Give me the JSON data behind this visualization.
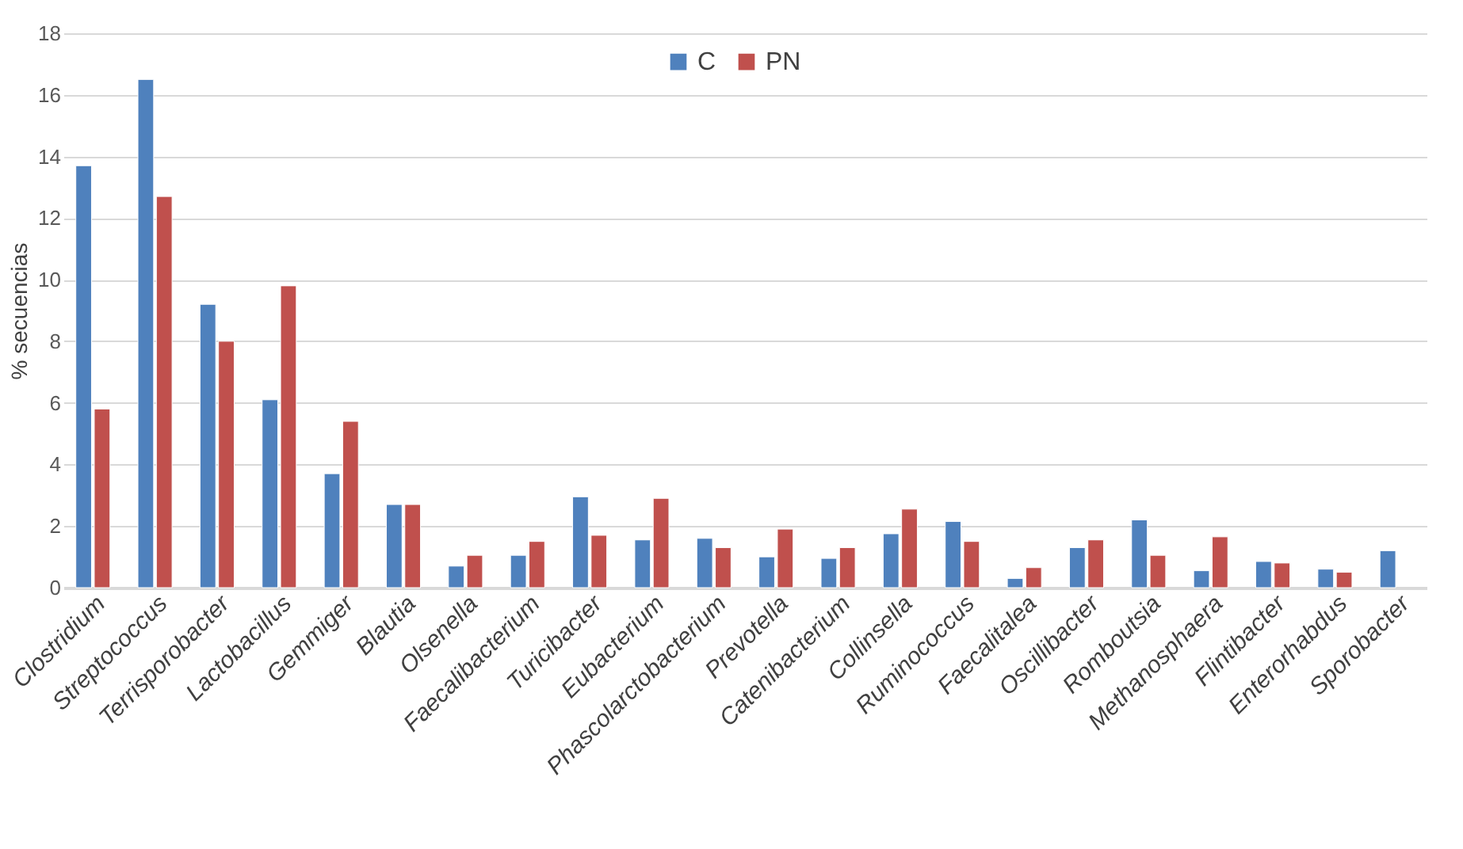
{
  "chart_data": {
    "type": "bar",
    "ylabel": "% secuencias",
    "categories": [
      "Clostridium",
      "Streptococcus",
      "Terrisporobacter",
      "Lactobacillus",
      "Gemmiger",
      "Blautia",
      "Olsenella",
      "Faecalibacterium",
      "Turicibacter",
      "Eubacterium",
      "Phascolarctobacterium",
      "Prevotella",
      "Catenibacterium",
      "Collinsella",
      "Ruminococcus",
      "Faecalitalea",
      "Oscillibacter",
      "Romboutsia",
      "Methanosphaera",
      "Flintibacter",
      "Enterorhabdus",
      "Sporobacter"
    ],
    "series": [
      {
        "name": "C",
        "color": "#4f81bd",
        "values": [
          13.7,
          16.5,
          9.2,
          6.1,
          3.7,
          2.7,
          0.7,
          1.05,
          2.95,
          1.55,
          1.6,
          1.0,
          0.95,
          1.75,
          2.15,
          0.3,
          1.3,
          2.2,
          0.55,
          0.85,
          0.6,
          1.2
        ]
      },
      {
        "name": "PN",
        "color": "#c0504d",
        "values": [
          5.8,
          12.7,
          8.0,
          9.8,
          5.4,
          2.7,
          1.05,
          1.5,
          1.7,
          2.9,
          1.3,
          1.9,
          1.3,
          2.55,
          1.5,
          0.65,
          1.55,
          1.05,
          1.65,
          0.8,
          0.5,
          null
        ]
      }
    ],
    "ylim": [
      0,
      18
    ],
    "yticks": [
      0,
      2,
      4,
      6,
      8,
      10,
      12,
      14,
      16,
      18
    ],
    "grid": "y",
    "legend": "top"
  }
}
